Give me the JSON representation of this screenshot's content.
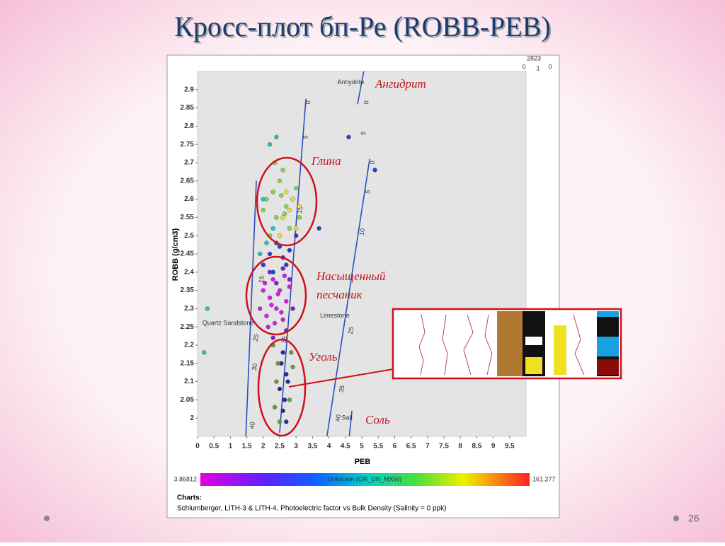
{
  "slide": {
    "title": "Кросс-плот бп-Ре (ROBB-PEB)",
    "page_number": "26",
    "annotations": {
      "anhydrite": "Ангидрит",
      "clay": "Глина",
      "sandstone": [
        "Насыщенный",
        "песчаник"
      ],
      "coal": "Уголь",
      "salt": "Соль"
    }
  },
  "chart_data": {
    "type": "scatter",
    "x_label": "PEB",
    "y_label": "ROBB (g/cm3)",
    "corner_labels": [
      "2823",
      "0",
      "1",
      "0"
    ],
    "xlim": [
      0,
      10
    ],
    "ylim": [
      1.95,
      2.95
    ],
    "xticks": [
      0,
      0.5,
      1,
      1.5,
      2,
      2.5,
      3,
      3.5,
      4,
      4.5,
      5,
      5.5,
      6,
      6.5,
      7,
      7.5,
      8,
      8.5,
      9,
      9.5
    ],
    "yticks": [
      2,
      2.05,
      2.1,
      2.15,
      2.2,
      2.25,
      2.3,
      2.35,
      2.4,
      2.45,
      2.5,
      2.55,
      2.6,
      2.65,
      2.7,
      2.75,
      2.8,
      2.85,
      2.9
    ],
    "reference_lines": [
      {
        "label": "Quartz Sandstone",
        "label_at": [
          0.93,
          2.26
        ],
        "x": [
          1.47,
          1.79
        ],
        "values": [
          1.95,
          2.65
        ],
        "porosity_labels": [
          {
            "text": "40",
            "at": [
              1.68,
              1.98
            ]
          },
          {
            "text": "30",
            "at": [
              1.75,
              2.14
            ]
          },
          {
            "text": "25",
            "at": [
              1.79,
              2.22
            ]
          },
          {
            "text": "15",
            "at": [
              1.96,
              2.38
            ]
          }
        ]
      },
      {
        "x": [
          2.5,
          3.3
        ],
        "values": [
          1.96,
          2.875
        ],
        "porosity_labels": [
          {
            "text": "0",
            "at": [
              3.38,
              2.865
            ]
          },
          {
            "text": "5",
            "at": [
              3.3,
              2.77
            ]
          },
          {
            "text": "15",
            "at": [
              3.13,
              2.57
            ]
          },
          {
            "text": "35",
            "at": [
              2.65,
              2.215
            ]
          }
        ]
      },
      {
        "label": "Limestone",
        "label_at": [
          4.18,
          2.28
        ],
        "x": [
          3.94,
          5.24
        ],
        "values": [
          1.95,
          2.71
        ],
        "porosity_labels": [
          {
            "text": "0",
            "at": [
              5.34,
              2.7
            ]
          },
          {
            "text": "5",
            "at": [
              5.19,
              2.62
            ]
          },
          {
            "text": "10",
            "at": [
              5.02,
              2.51
            ]
          },
          {
            "text": "25",
            "at": [
              4.68,
              2.24
            ]
          },
          {
            "text": "35",
            "at": [
              4.4,
              2.08
            ]
          },
          {
            "text": "40",
            "at": [
              4.29,
              2.0
            ]
          }
        ]
      },
      {
        "label": "Anhydrite",
        "label_at": [
          4.66,
          2.92
        ],
        "x": [
          4.87,
          5.06
        ],
        "values": [
          2.86,
          2.95
        ],
        "porosity_labels": [
          {
            "text": "0",
            "at": [
              5.15,
              2.865
            ]
          },
          {
            "text": "5",
            "at": [
              5.06,
              2.78
            ]
          }
        ]
      },
      {
        "label": "Salt",
        "label_at": [
          4.55,
          2.0
        ],
        "x": [
          4.62,
          4.7
        ],
        "values": [
          1.95,
          2.02
        ],
        "porosity_labels": []
      }
    ],
    "series": [
      {
        "color": "#7fd84a",
        "x": [
          2.1,
          2.3,
          2.5,
          2.7,
          2.9,
          3.1,
          2.4,
          2.6,
          2.2,
          2.8,
          3.0,
          2.0,
          2.35,
          2.65,
          2.55
        ],
        "values": [
          2.6,
          2.62,
          2.65,
          2.58,
          2.6,
          2.55,
          2.55,
          2.68,
          2.5,
          2.52,
          2.63,
          2.57,
          2.7,
          2.56,
          2.61
        ]
      },
      {
        "color": "#e8e03a",
        "x": [
          2.6,
          2.8,
          2.9,
          3.0,
          2.7,
          2.5,
          3.1
        ],
        "values": [
          2.55,
          2.57,
          2.6,
          2.52,
          2.62,
          2.5,
          2.58
        ]
      },
      {
        "color": "#27c0c0",
        "x": [
          1.9,
          2.1,
          2.3,
          2.0,
          0.3,
          0.2,
          2.2,
          2.4
        ],
        "values": [
          2.45,
          2.48,
          2.52,
          2.6,
          2.3,
          2.18,
          2.75,
          2.77
        ]
      },
      {
        "color": "#2a3fd0",
        "x": [
          2.0,
          2.2,
          2.4,
          2.6,
          2.8,
          3.0,
          2.3,
          2.5,
          2.7,
          4.6,
          5.4,
          3.7
        ],
        "values": [
          2.42,
          2.45,
          2.48,
          2.44,
          2.46,
          2.5,
          2.4,
          2.47,
          2.42,
          2.77,
          2.68,
          2.52
        ]
      },
      {
        "color": "#d020e0",
        "x": [
          1.9,
          2.0,
          2.1,
          2.2,
          2.3,
          2.4,
          2.5,
          2.6,
          2.7,
          2.8,
          2.15,
          2.35,
          2.55,
          2.05,
          2.25,
          2.45,
          2.65
        ],
        "values": [
          2.3,
          2.35,
          2.28,
          2.33,
          2.38,
          2.3,
          2.35,
          2.27,
          2.32,
          2.36,
          2.25,
          2.26,
          2.29,
          2.37,
          2.31,
          2.34,
          2.39
        ]
      },
      {
        "color": "#7a22c8",
        "x": [
          2.2,
          2.4,
          2.6,
          2.8,
          2.3,
          2.7,
          2.9
        ],
        "values": [
          2.4,
          2.37,
          2.41,
          2.38,
          2.22,
          2.24,
          2.3
        ]
      },
      {
        "color": "#2a2a90",
        "x": [
          2.6,
          2.7,
          2.5,
          2.65,
          2.55,
          2.75,
          2.6,
          2.7
        ],
        "values": [
          2.18,
          2.12,
          2.08,
          2.05,
          2.15,
          2.1,
          2.02,
          1.99
        ]
      },
      {
        "color": "#6a9a4a",
        "x": [
          2.3,
          2.4,
          2.9,
          2.8,
          2.35,
          2.5,
          2.85,
          2.45
        ],
        "values": [
          2.2,
          2.1,
          2.14,
          2.05,
          2.03,
          1.99,
          2.18,
          2.15
        ]
      }
    ],
    "colorbar": {
      "min": 3.86812,
      "max": 161.277,
      "label": "Unknown (GR_DN_MXW)"
    },
    "charts_title": "Charts:",
    "charts_note": "Schlumberger, LITH-3 & LITH-4, Photoelectric factor vs Bulk Density (Salinity = 0 ppk)"
  }
}
